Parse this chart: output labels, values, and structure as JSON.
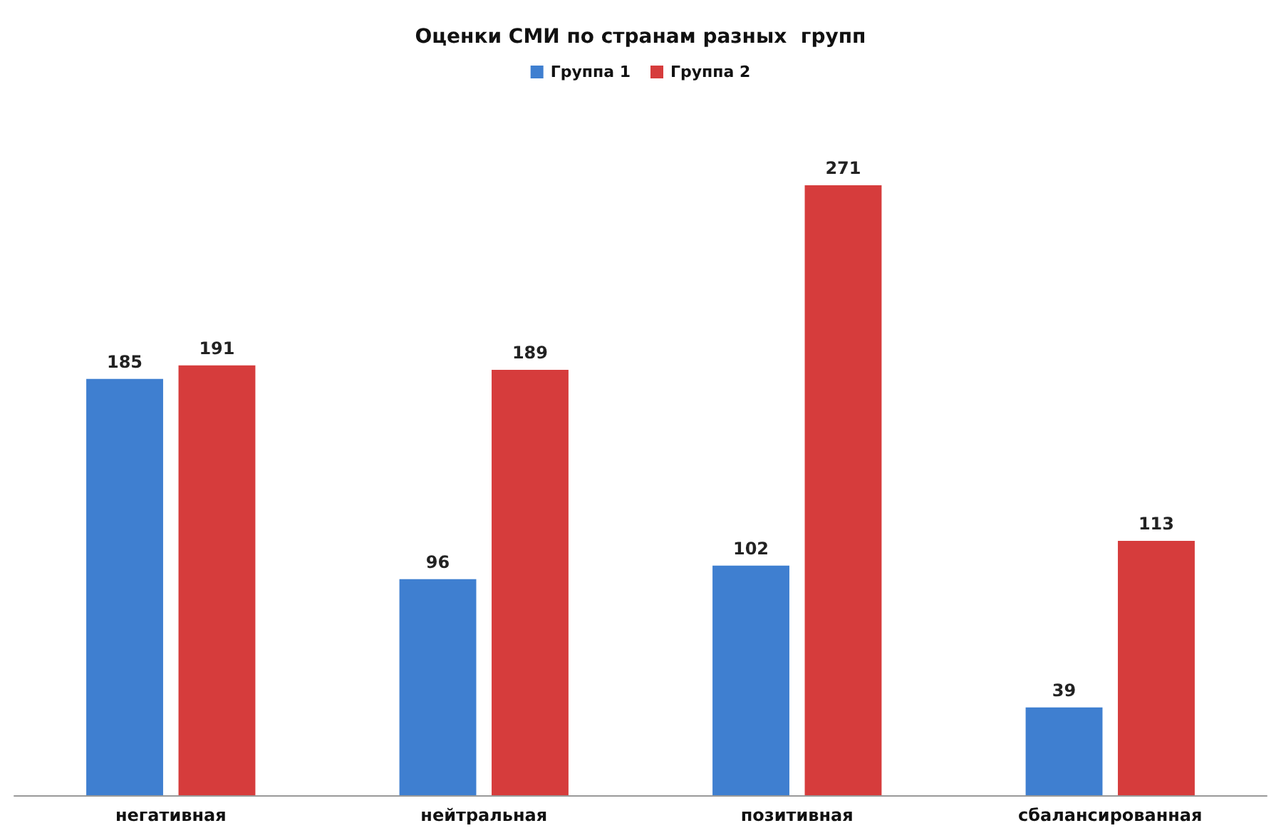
{
  "chart_data": {
    "type": "bar",
    "title": "Оценки СМИ по странам разных  групп",
    "categories": [
      "негативная",
      "нейтральная",
      "позитивная",
      "сбалансированная"
    ],
    "series": [
      {
        "name": "Группа 1",
        "color": "#3f7fd0",
        "values": [
          185,
          96,
          102,
          39
        ]
      },
      {
        "name": "Группа 2",
        "color": "#d63c3c",
        "values": [
          191,
          189,
          271,
          113
        ]
      }
    ],
    "data_labels": true,
    "legend": "top"
  }
}
